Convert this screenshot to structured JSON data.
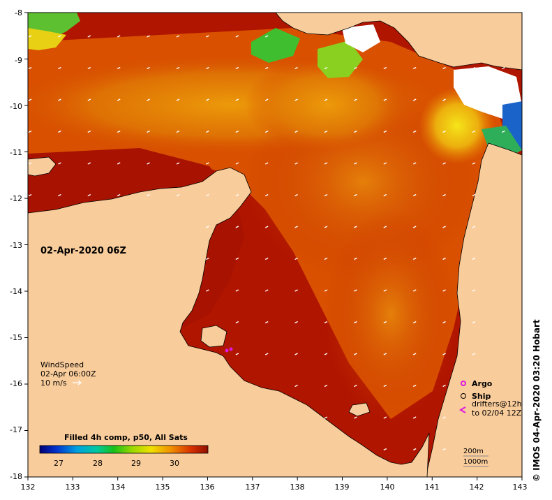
{
  "map": {
    "timestamp_title": "02-Apr-2020 06Z",
    "x_ticks": [
      "132",
      "133",
      "134",
      "135",
      "136",
      "137",
      "138",
      "139",
      "140",
      "141",
      "142",
      "143"
    ],
    "y_ticks": [
      "-8",
      "-9",
      "-10",
      "-11",
      "-12",
      "-13",
      "-14",
      "-15",
      "-16",
      "-17",
      "-18"
    ],
    "wind": {
      "title": "WindSpeed",
      "time": "02-Apr 06:00Z",
      "scale": "10 m/s"
    },
    "legend": {
      "argo": "Argo",
      "ship": "Ship",
      "drifters_line1": "drifters@12h",
      "drifters_line2": "to 02/04 12Z",
      "depth_200": "200m",
      "depth_1000": "1000m"
    },
    "colorbar": {
      "title": "Filled 4h comp, p50, All Sats",
      "ticks": [
        "27",
        "28",
        "29",
        "30"
      ]
    },
    "credit": "© IMOS 04-Apr-2020 03:20 Hobart",
    "colors": {
      "land": "#f9cc9b",
      "sst_hot": "#b01500",
      "sst_warm": "#d84a00",
      "sst_mid": "#e98a05",
      "sst_cool": "#f2cc10",
      "sst_green": "#3fbf30",
      "sst_blue": "#1a63c8",
      "argo": "#e018e0",
      "drifter": "#e018e0"
    }
  }
}
